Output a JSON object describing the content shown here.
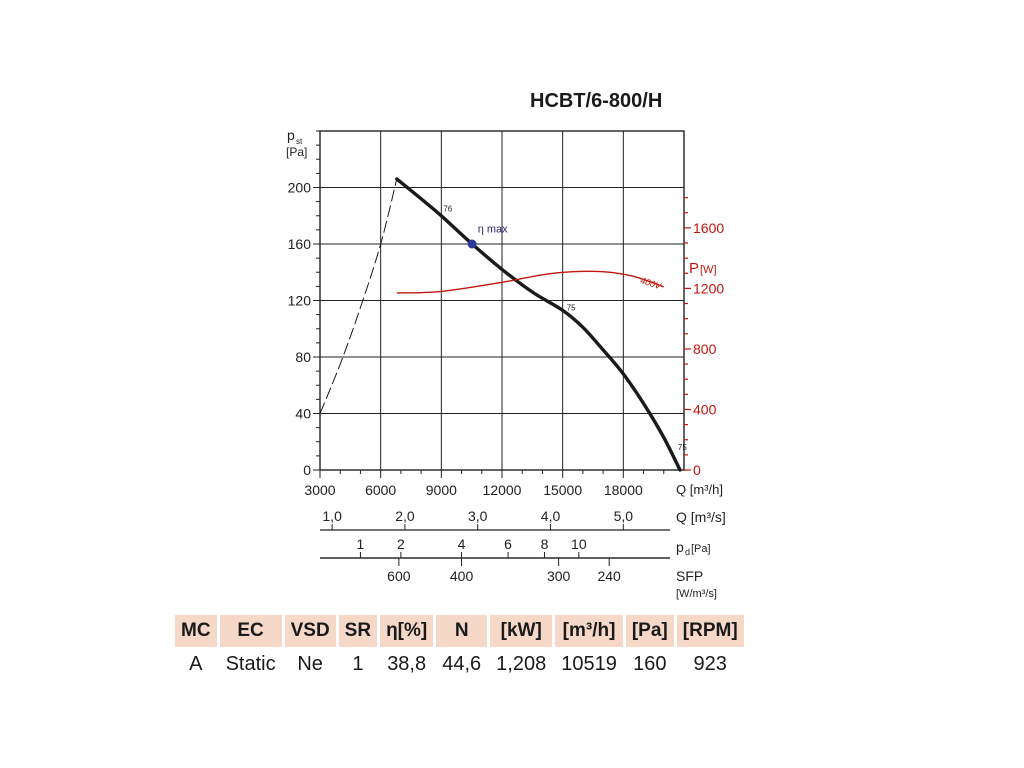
{
  "title": "HCBT/6-800/H",
  "chart_data": {
    "type": "line",
    "title": "HCBT/6-800/H",
    "left_axis": {
      "label": "p",
      "label_sub": "st",
      "unit": "[Pa]",
      "ticks": [
        0,
        40,
        80,
        120,
        160,
        200
      ],
      "ylim": [
        0,
        240
      ]
    },
    "right_axis": {
      "label": "P",
      "unit": "[W]",
      "ticks": [
        0,
        400,
        800,
        1200,
        1600
      ],
      "ylim": [
        0,
        2240
      ],
      "color": "#c0170f"
    },
    "x_axis": {
      "label": "Q [m³/h]",
      "ticks": [
        3000,
        6000,
        9000,
        12000,
        15000,
        18000
      ],
      "xlim": [
        3000,
        21000
      ]
    },
    "grid": true,
    "series": [
      {
        "axis": "left",
        "color": "#1a1a1a",
        "style": "thick",
        "x": [
          6800,
          8000,
          9000,
          10519,
          12000,
          13500,
          15000,
          16000,
          17000,
          18000,
          19000,
          20000,
          20800
        ],
        "y": [
          206,
          192,
          180,
          160,
          142,
          126,
          113,
          101,
          85,
          68,
          47,
          23,
          0
        ]
      },
      {
        "axis": "left",
        "color": "#1a1a1a",
        "style": "dashed",
        "x": [
          3000,
          4000,
          5000,
          6000,
          6800
        ],
        "y": [
          40,
          75,
          115,
          160,
          206
        ]
      },
      {
        "axis": "right",
        "color": "#c0170f",
        "style": "thin",
        "label": "400V",
        "x": [
          6800,
          9000,
          12000,
          14000,
          15500,
          17000,
          18500,
          20000
        ],
        "y": [
          1170,
          1180,
          1240,
          1290,
          1310,
          1310,
          1280,
          1210
        ]
      }
    ],
    "annotations": [
      {
        "text": "76",
        "x": 9100,
        "y": 183
      },
      {
        "text": "η max",
        "x": 10800,
        "y": 168,
        "color": "#2c2c7a"
      },
      {
        "text": "75",
        "x": 15200,
        "y": 113
      },
      {
        "text": "75",
        "x": 20700,
        "y": 14
      }
    ],
    "operating_point": {
      "x": 10519,
      "y": 160,
      "color": "#2d3a9a"
    },
    "secondary_scales": [
      {
        "label": "Q [m³/s]",
        "ticks": [
          {
            "text": "1,0",
            "q": 3600
          },
          {
            "text": "2,0",
            "q": 7200
          },
          {
            "text": "3,0",
            "q": 10800
          },
          {
            "text": "4,0",
            "q": 14400
          },
          {
            "text": "5,0",
            "q": 18000
          }
        ]
      },
      {
        "label": "p",
        "label_sub": "d",
        "unit": "[Pa]",
        "ticks": [
          {
            "text": "1",
            "q": 5000
          },
          {
            "text": "2",
            "q": 7000
          },
          {
            "text": "4",
            "q": 10000
          },
          {
            "text": "6",
            "q": 12300
          },
          {
            "text": "8",
            "q": 14100
          },
          {
            "text": "10",
            "q": 15800
          }
        ]
      },
      {
        "label": "SFP",
        "unit": "[W/m³/s]",
        "ticks": [
          {
            "text": "600",
            "q": 6900
          },
          {
            "text": "400",
            "q": 10000
          },
          {
            "text": "300",
            "q": 14800
          },
          {
            "text": "240",
            "q": 17300
          }
        ]
      }
    ]
  },
  "table": {
    "headers": [
      "MC",
      "EC",
      "VSD",
      "SR",
      "η[%]",
      "N",
      "[kW]",
      "[m³/h]",
      "[Pa]",
      "[RPM]"
    ],
    "values": [
      "A",
      "Static",
      "Ne",
      "1",
      "38,8",
      "44,6",
      "1,208",
      "10519",
      "160",
      "923"
    ]
  }
}
